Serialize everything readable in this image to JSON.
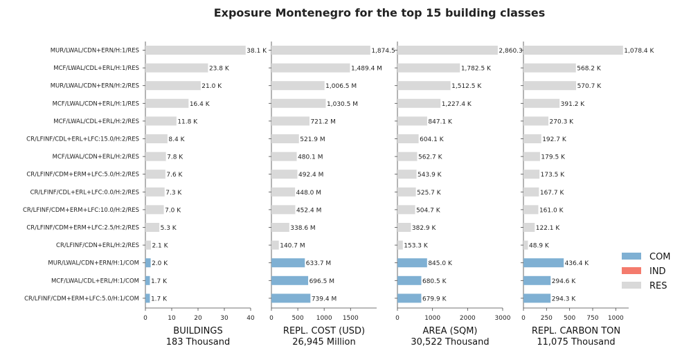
{
  "chart_data": {
    "type": "bar",
    "orientation": "horizontal",
    "title": "Exposure Montenegro for the top 15 building classes",
    "categories": [
      "MUR/LWAL/CDN+ERN/H:1/RES",
      "MCF/LWAL/CDL+ERL/H:1/RES",
      "MUR/LWAL/CDN+ERN/H:2/RES",
      "MCF/LWAL/CDN+ERL/H:1/RES",
      "MCF/LWAL/CDL+ERL/H:2/RES",
      "CR/LFINF/CDL+ERL+LFC:15.0/H:2/RES",
      "MCF/LWAL/CDN+ERL/H:2/RES",
      "CR/LFINF/CDM+ERM+LFC:5.0/H:2/RES",
      "CR/LFINF/CDL+ERL+LFC:0.0/H:2/RES",
      "CR/LFINF/CDM+ERM+LFC:10.0/H:2/RES",
      "CR/LFINF/CDM+ERM+LFC:2.5/H:2/RES",
      "CR/LFINF/CDN+ERL/H:2/RES",
      "MUR/LWAL/CDN+ERN/H:1/COM",
      "MCF/LWAL/CDL+ERL/H:1/COM",
      "CR/LFINF/CDM+ERM+LFC:5.0/H:1/COM"
    ],
    "occupancy": [
      "RES",
      "RES",
      "RES",
      "RES",
      "RES",
      "RES",
      "RES",
      "RES",
      "RES",
      "RES",
      "RES",
      "RES",
      "COM",
      "COM",
      "COM"
    ],
    "colors": {
      "COM": "#7fb0d3",
      "IND": "#f47b6d",
      "RES": "#d9d9d9"
    },
    "legend": {
      "position": "right",
      "entries": [
        "COM",
        "IND",
        "RES"
      ]
    },
    "panels": [
      {
        "xlabel": "BUILDINGS",
        "total": "183 Thousand",
        "xlim": [
          0,
          40
        ],
        "ticks": [
          0,
          10,
          20,
          30,
          40
        ],
        "values": [
          38.1,
          23.8,
          21.0,
          16.4,
          11.8,
          8.4,
          7.8,
          7.6,
          7.3,
          7.0,
          5.3,
          2.1,
          2.0,
          1.7,
          1.7
        ],
        "labels": [
          "38.1 K",
          "23.8 K",
          "21.0 K",
          "16.4 K",
          "11.8 K",
          "8.4 K",
          "7.8 K",
          "7.6 K",
          "7.3 K",
          "7.0 K",
          "5.3 K",
          "2.1 K",
          "2.0 K",
          "1.7 K",
          "1.7 K"
        ]
      },
      {
        "xlabel": "REPL. COST (USD)",
        "total": "26,945 Million",
        "xlim": [
          0,
          1995
        ],
        "ticks": [
          0,
          500,
          1000,
          1500
        ],
        "values": [
          1874.5,
          1489.4,
          1006.5,
          1030.5,
          721.2,
          521.9,
          480.1,
          492.4,
          448.0,
          452.4,
          338.6,
          140.7,
          633.7,
          696.5,
          739.4
        ],
        "labels": [
          "1,874.5",
          "1,489.4 M",
          "1,006.5 M",
          "1,030.5 M",
          "721.2 M",
          "521.9 M",
          "480.1 M",
          "492.4 M",
          "448.0 M",
          "452.4 M",
          "338.6 M",
          "140.7 M",
          "633.7 M",
          "696.5 M",
          "739.4 M"
        ]
      },
      {
        "xlabel": "AREA (SQM)",
        "total": "30,522 Thousand",
        "xlim": [
          0,
          3000
        ],
        "ticks": [
          0,
          1000,
          2000,
          3000
        ],
        "values": [
          2860.3,
          1782.5,
          1512.5,
          1227.4,
          847.1,
          604.1,
          562.7,
          543.9,
          525.7,
          504.7,
          382.9,
          153.3,
          845.0,
          680.5,
          679.9
        ],
        "labels": [
          "2,860.3",
          "1,782.5 K",
          "1,512.5 K",
          "1,227.4 K",
          "847.1 K",
          "604.1 K",
          "562.7 K",
          "543.9 K",
          "525.7 K",
          "504.7 K",
          "382.9 K",
          "153.3 K",
          "845.0 K",
          "680.5 K",
          "679.9 K"
        ]
      },
      {
        "xlabel": "REPL. CARBON TON",
        "total": "11,075 Thousand",
        "xlim": [
          0,
          1140
        ],
        "ticks": [
          0,
          250,
          500,
          750,
          1000
        ],
        "values": [
          1078.4,
          568.2,
          570.7,
          391.2,
          270.3,
          192.7,
          179.5,
          173.5,
          167.7,
          161.0,
          122.1,
          48.9,
          436.4,
          294.6,
          294.3
        ],
        "labels": [
          "1,078.4 K",
          "568.2 K",
          "570.7 K",
          "391.2 K",
          "270.3 K",
          "192.7 K",
          "179.5 K",
          "173.5 K",
          "167.7 K",
          "161.0 K",
          "122.1 K",
          "48.9 K",
          "436.4 K",
          "294.6 K",
          "294.3 K"
        ]
      }
    ]
  }
}
